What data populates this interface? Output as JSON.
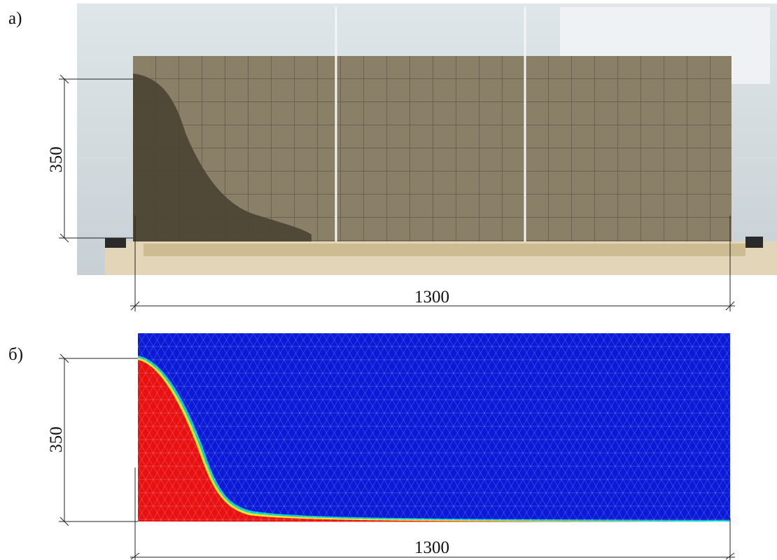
{
  "panels": [
    {
      "label": "а)",
      "height_label": "350",
      "width_label": "1300"
    },
    {
      "label": "б)",
      "height_label": "350",
      "width_label": "1300"
    }
  ]
}
